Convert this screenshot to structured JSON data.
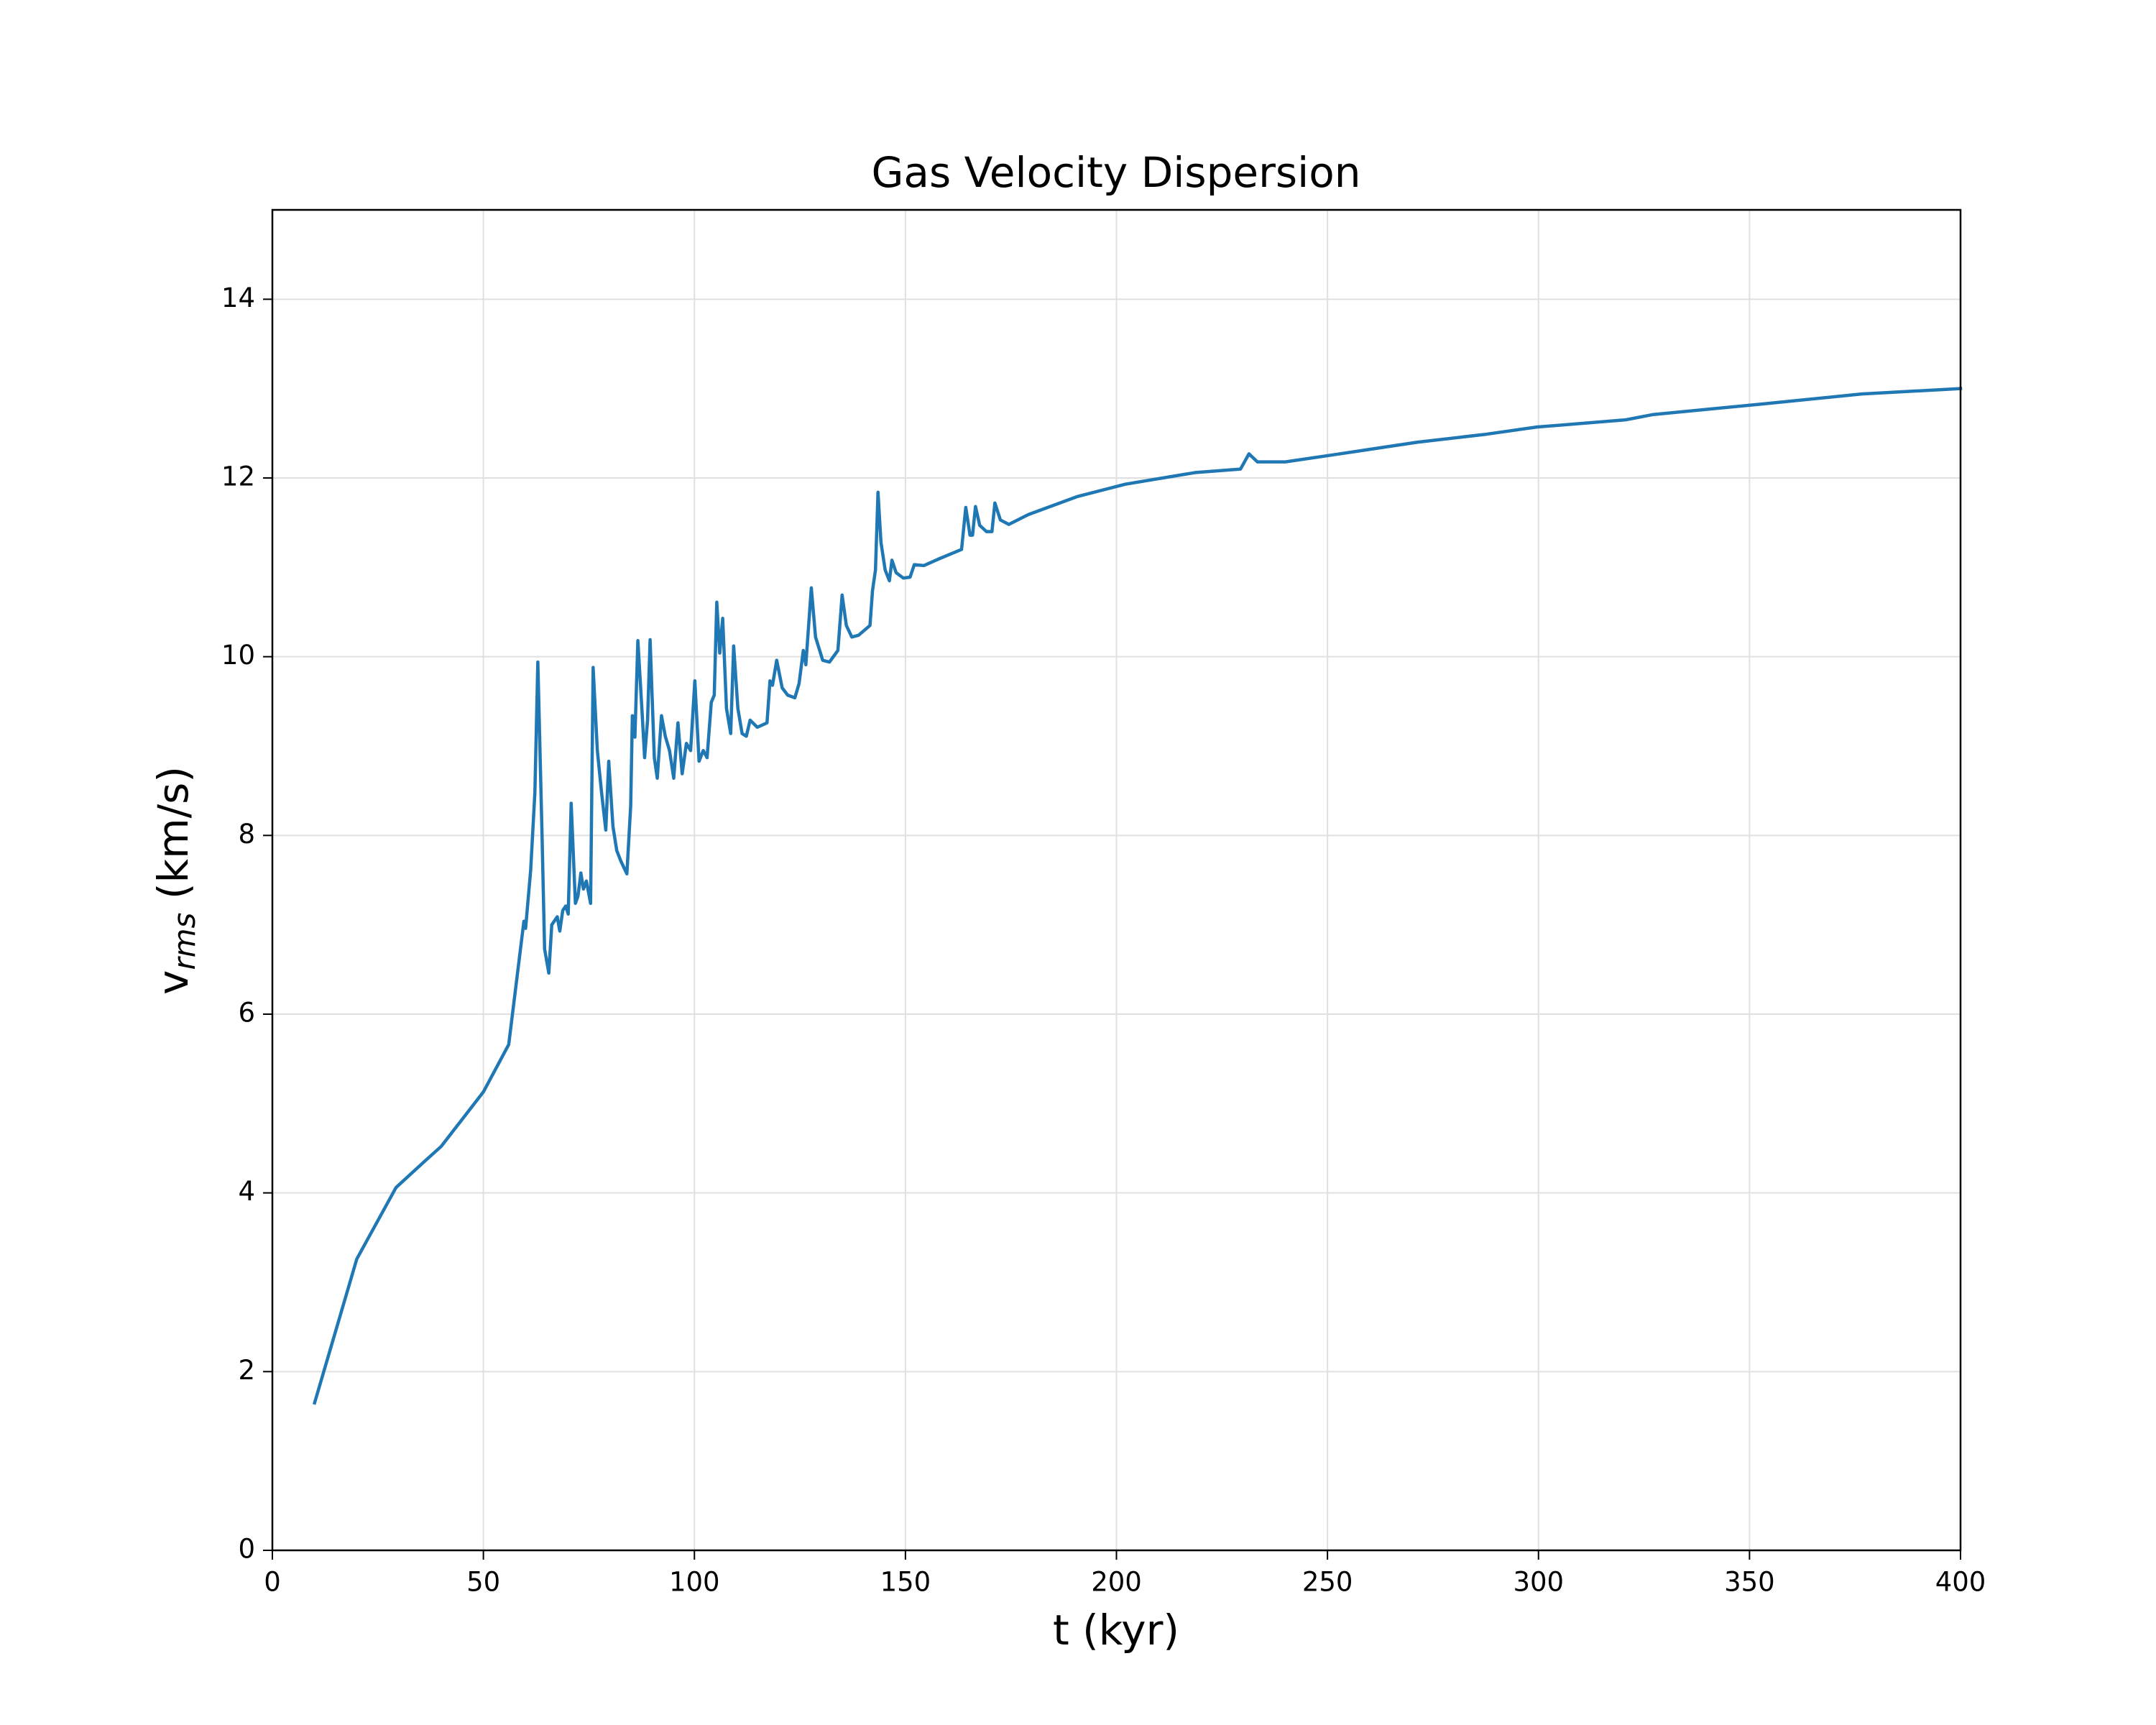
{
  "chart_data": {
    "type": "line",
    "title": "Gas Velocity Dispersion",
    "x_label": "t (kyr)",
    "y_label": {
      "main": "v",
      "sub": "rms",
      "rest": " (km/s)"
    },
    "xlim": [
      0,
      400
    ],
    "xticks": [
      0,
      50,
      100,
      150,
      200,
      250,
      300,
      350,
      400
    ],
    "ylim": [
      0,
      15
    ],
    "yticks": [
      0,
      2,
      4,
      6,
      8,
      10,
      12,
      14
    ],
    "grid": true,
    "series": [
      {
        "color": "#1f77b4",
        "x": [
          10,
          20,
          29.3,
          36,
          40,
          50,
          56,
          59.6,
          60,
          61.2,
          62.2,
          62.9,
          63.9,
          64.5,
          65.5,
          66.2,
          67.5,
          68.1,
          68.8,
          69.5,
          70.1,
          70.8,
          71.8,
          72.4,
          73.1,
          73.7,
          74.4,
          75.4,
          76.0,
          77,
          78,
          79,
          79.7,
          80.7,
          81.6,
          82.6,
          84,
          84.9,
          85.3,
          85.9,
          86.6,
          87.6,
          88.2,
          88.9,
          89.5,
          90.5,
          91.2,
          92.2,
          93.1,
          94.1,
          95.1,
          96.1,
          97.1,
          98.1,
          99.1,
          100.1,
          101.1,
          102.1,
          103.0,
          104.0,
          104.7,
          105.3,
          106,
          106.7,
          107.6,
          108.6,
          109.3,
          110.3,
          111.3,
          112.3,
          113.2,
          114.9,
          117.2,
          117.9,
          118.5,
          119.5,
          120.8,
          122.1,
          123.8,
          124.8,
          125.8,
          126.4,
          127.7,
          128.7,
          130.4,
          132,
          134,
          135,
          136,
          137.3,
          138.9,
          141.6,
          142.2,
          142.9,
          143.5,
          144.2,
          145.2,
          146.2,
          146.8,
          147.8,
          149.5,
          151.1,
          152.1,
          154.4,
          157.7,
          163.3,
          164.3,
          165.3,
          165.9,
          166.6,
          167.6,
          169.2,
          170.5,
          171.2,
          172.5,
          174.5,
          179.1,
          190.6,
          202.1,
          218.6,
          229.4,
          231.4,
          233.4,
          240,
          251.5,
          271.3,
          287.7,
          299.6,
          320.6,
          327.2,
          353.6,
          376.6,
          400
        ],
        "values": [
          1.65,
          3.26,
          4.06,
          4.35,
          4.52,
          5.13,
          5.66,
          7.04,
          6.96,
          7.61,
          8.48,
          9.94,
          8.0,
          6.73,
          6.46,
          7.0,
          7.09,
          6.93,
          7.16,
          7.21,
          7.12,
          8.36,
          7.24,
          7.32,
          7.58,
          7.4,
          7.49,
          7.24,
          9.88,
          8.95,
          8.48,
          8.06,
          8.83,
          8.1,
          7.83,
          7.71,
          7.57,
          8.33,
          9.34,
          9.1,
          10.18,
          9.38,
          8.87,
          9.29,
          10.19,
          8.87,
          8.64,
          9.34,
          9.11,
          8.95,
          8.64,
          9.26,
          8.69,
          9.03,
          8.95,
          9.73,
          8.83,
          8.95,
          8.87,
          9.49,
          9.57,
          10.61,
          10.04,
          10.43,
          9.42,
          9.14,
          10.12,
          9.42,
          9.14,
          9.11,
          9.29,
          9.21,
          9.26,
          9.73,
          9.68,
          9.96,
          9.65,
          9.57,
          9.54,
          9.7,
          10.07,
          9.91,
          10.77,
          10.22,
          9.96,
          9.94,
          10.07,
          10.69,
          10.35,
          10.22,
          10.24,
          10.35,
          10.74,
          10.97,
          11.84,
          11.28,
          10.97,
          10.85,
          11.08,
          10.94,
          10.88,
          10.89,
          11.03,
          11.02,
          11.09,
          11.2,
          11.67,
          11.36,
          11.36,
          11.68,
          11.47,
          11.4,
          11.4,
          11.72,
          11.53,
          11.48,
          11.59,
          11.79,
          11.93,
          12.06,
          12.1,
          12.27,
          12.18,
          12.18,
          12.26,
          12.4,
          12.49,
          12.57,
          12.65,
          12.71,
          12.83,
          12.94,
          13.0
        ]
      }
    ]
  }
}
